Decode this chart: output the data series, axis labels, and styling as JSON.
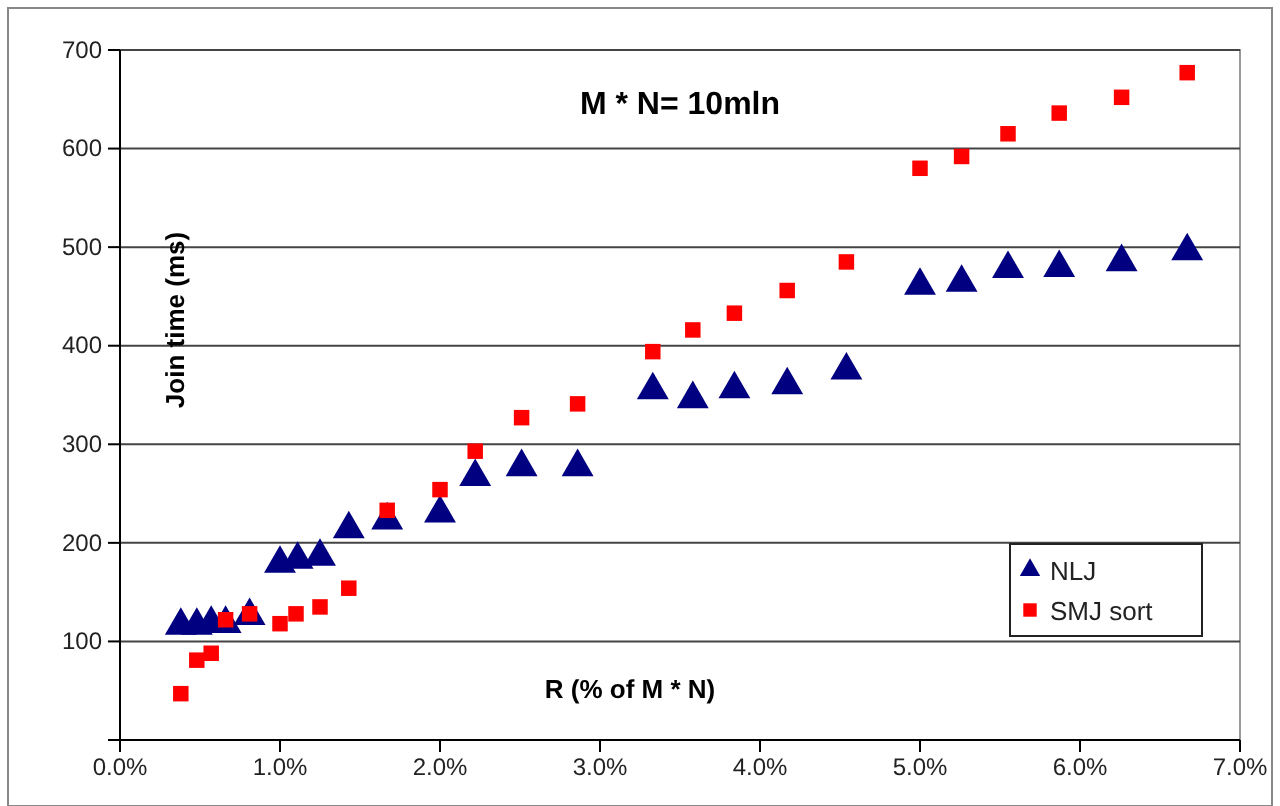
{
  "chart_data": {
    "type": "scatter",
    "title": "M * N= 10mln",
    "xlabel": "R (% of M * N)",
    "ylabel": "Join time (ms)",
    "xlim": [
      0,
      7
    ],
    "xticks": [
      {
        "value": 0,
        "label": "0.0%"
      },
      {
        "value": 1,
        "label": "1.0%"
      },
      {
        "value": 2,
        "label": "2.0%"
      },
      {
        "value": 3,
        "label": "3.0%"
      },
      {
        "value": 4,
        "label": "4.0%"
      },
      {
        "value": 5,
        "label": "5.0%"
      },
      {
        "value": 6,
        "label": "6.0%"
      },
      {
        "value": 7,
        "label": "7.0%"
      }
    ],
    "ylim": [
      0,
      700
    ],
    "yticks": [
      {
        "value": 0,
        "label": null
      },
      100,
      200,
      300,
      400,
      500,
      600,
      700
    ],
    "grid": "y",
    "legend": "bottom right",
    "series": [
      {
        "name": "NLJ",
        "color": "#000080",
        "marker": "triangle",
        "x": [
          0.38,
          0.48,
          0.57,
          0.66,
          0.81,
          1.0,
          1.11,
          1.25,
          1.43,
          1.67,
          2.0,
          2.22,
          2.51,
          2.86,
          3.33,
          3.58,
          3.84,
          4.17,
          4.54,
          5.0,
          5.26,
          5.55,
          5.87,
          6.26,
          6.67
        ],
        "values": [
          116,
          116,
          118,
          118,
          126,
          179,
          183,
          186,
          214,
          223,
          230,
          267,
          277,
          277,
          355,
          346,
          356,
          360,
          375,
          461,
          464,
          478,
          479,
          485,
          496
        ]
      },
      {
        "name": "SMJ sort",
        "color": "#ff0000",
        "marker": "square",
        "x": [
          0.38,
          0.48,
          0.57,
          0.66,
          0.81,
          1.0,
          1.1,
          1.25,
          1.43,
          1.67,
          2.0,
          2.22,
          2.51,
          2.86,
          3.33,
          3.58,
          3.84,
          4.17,
          4.54,
          5.0,
          5.26,
          5.55,
          5.87,
          6.26,
          6.67
        ],
        "values": [
          47,
          81,
          88,
          122,
          128,
          118,
          128,
          135,
          154,
          233,
          254,
          293,
          327,
          341,
          394,
          416,
          433,
          456,
          485,
          580,
          592,
          615,
          636,
          652,
          677
        ]
      }
    ]
  }
}
